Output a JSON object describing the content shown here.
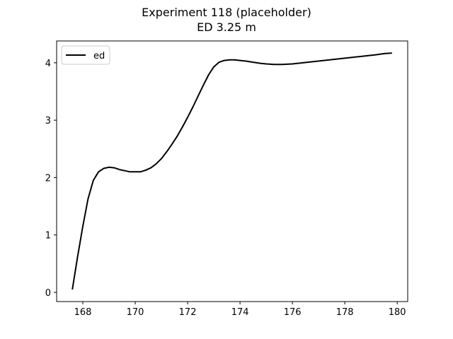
{
  "chart_data": {
    "type": "line",
    "title": "Experiment 118 (placeholder)",
    "subtitle": "ED 3.25 m",
    "xlabel": "",
    "ylabel": "",
    "xlim": [
      167.0,
      180.4
    ],
    "ylim": [
      -0.16,
      4.38
    ],
    "xticks": [
      168,
      170,
      172,
      174,
      176,
      178,
      180
    ],
    "yticks": [
      0,
      1,
      2,
      3,
      4
    ],
    "grid": false,
    "legend": {
      "position": "top-left",
      "entries": [
        "ed"
      ]
    },
    "series": [
      {
        "name": "ed",
        "color": "#000000",
        "x": [
          167.6,
          167.8,
          168.0,
          168.2,
          168.4,
          168.6,
          168.8,
          169.0,
          169.2,
          169.4,
          169.6,
          169.8,
          170.0,
          170.2,
          170.4,
          170.6,
          170.8,
          171.0,
          171.2,
          171.4,
          171.6,
          171.8,
          172.0,
          172.2,
          172.4,
          172.6,
          172.8,
          173.0,
          173.2,
          173.4,
          173.6,
          173.8,
          174.0,
          174.2,
          174.5,
          174.8,
          175.0,
          175.3,
          175.6,
          176.0,
          176.4,
          176.8,
          177.2,
          177.6,
          178.0,
          178.4,
          178.8,
          179.2,
          179.5,
          179.8
        ],
        "y": [
          0.05,
          0.62,
          1.15,
          1.63,
          1.95,
          2.1,
          2.16,
          2.18,
          2.17,
          2.14,
          2.12,
          2.1,
          2.1,
          2.1,
          2.13,
          2.17,
          2.24,
          2.33,
          2.45,
          2.58,
          2.72,
          2.88,
          3.05,
          3.23,
          3.42,
          3.61,
          3.79,
          3.93,
          4.01,
          4.04,
          4.05,
          4.05,
          4.04,
          4.03,
          4.01,
          3.99,
          3.98,
          3.97,
          3.97,
          3.98,
          4.0,
          4.02,
          4.04,
          4.06,
          4.08,
          4.1,
          4.12,
          4.14,
          4.16,
          4.17
        ]
      }
    ]
  }
}
